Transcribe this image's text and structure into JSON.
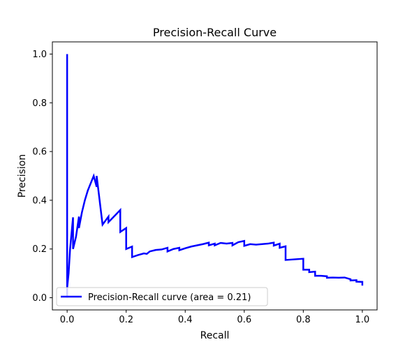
{
  "chart_data": {
    "type": "line",
    "title": "Precision-Recall Curve",
    "xlabel": "Recall",
    "ylabel": "Precision",
    "xlim": [
      -0.05,
      1.05
    ],
    "ylim": [
      -0.05,
      1.05
    ],
    "xticks": [
      0.0,
      0.2,
      0.4,
      0.6,
      0.8,
      1.0
    ],
    "xtick_labels": [
      "0.0",
      "0.2",
      "0.4",
      "0.6",
      "0.8",
      "1.0"
    ],
    "yticks": [
      0.0,
      0.2,
      0.4,
      0.6,
      0.8,
      1.0
    ],
    "ytick_labels": [
      "0.0",
      "0.2",
      "0.4",
      "0.6",
      "0.8",
      "1.0"
    ],
    "grid": false,
    "legend_placement": "lower-left",
    "series": [
      {
        "name": "Precision-Recall curve (area = 0.21)",
        "color": "#0000ff",
        "x": [
          0.0,
          0.0,
          0.0,
          0.005,
          0.01,
          0.02,
          0.02,
          0.03,
          0.04,
          0.04,
          0.05,
          0.06,
          0.07,
          0.08,
          0.09,
          0.1,
          0.1,
          0.12,
          0.12,
          0.14,
          0.14,
          0.18,
          0.18,
          0.2,
          0.2,
          0.22,
          0.22,
          0.24,
          0.26,
          0.27,
          0.28,
          0.3,
          0.32,
          0.34,
          0.34,
          0.36,
          0.38,
          0.38,
          0.4,
          0.42,
          0.44,
          0.46,
          0.48,
          0.48,
          0.5,
          0.5,
          0.52,
          0.54,
          0.56,
          0.56,
          0.58,
          0.6,
          0.6,
          0.62,
          0.64,
          0.66,
          0.68,
          0.7,
          0.7,
          0.72,
          0.72,
          0.74,
          0.74,
          0.8,
          0.8,
          0.82,
          0.82,
          0.84,
          0.84,
          0.86,
          0.88,
          0.88,
          0.9,
          0.92,
          0.94,
          0.96,
          0.96,
          0.98,
          0.98,
          1.0,
          1.0
        ],
        "y": [
          1.0,
          0.0,
          0.04,
          0.1,
          0.2,
          0.33,
          0.2,
          0.25,
          0.333,
          0.286,
          0.35,
          0.4,
          0.44,
          0.47,
          0.5,
          0.455,
          0.5,
          0.3,
          0.3,
          0.333,
          0.31,
          0.36,
          0.27,
          0.286,
          0.2,
          0.21,
          0.167,
          0.175,
          0.182,
          0.18,
          0.19,
          0.196,
          0.198,
          0.205,
          0.19,
          0.2,
          0.205,
          0.195,
          0.203,
          0.21,
          0.215,
          0.22,
          0.226,
          0.215,
          0.222,
          0.215,
          0.225,
          0.222,
          0.225,
          0.215,
          0.228,
          0.233,
          0.213,
          0.22,
          0.218,
          0.22,
          0.222,
          0.226,
          0.214,
          0.222,
          0.205,
          0.211,
          0.155,
          0.16,
          0.115,
          0.115,
          0.105,
          0.107,
          0.09,
          0.09,
          0.088,
          0.082,
          0.083,
          0.082,
          0.083,
          0.076,
          0.071,
          0.072,
          0.066,
          0.065,
          0.05
        ]
      }
    ]
  }
}
